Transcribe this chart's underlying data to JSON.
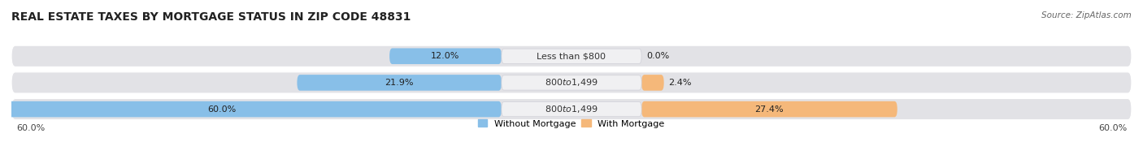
{
  "title": "REAL ESTATE TAXES BY MORTGAGE STATUS IN ZIP CODE 48831",
  "source": "Source: ZipAtlas.com",
  "rows": [
    {
      "label": "Less than $800",
      "without_pct": 12.0,
      "with_pct": 0.0
    },
    {
      "label": "$800 to $1,499",
      "without_pct": 21.9,
      "with_pct": 2.4
    },
    {
      "label": "$800 to $1,499",
      "without_pct": 60.0,
      "with_pct": 27.4
    }
  ],
  "x_max": 60.0,
  "blue_color": "#88bfe8",
  "orange_color": "#f5b87a",
  "row_bg_color": "#e2e2e6",
  "label_box_color": "#f0f0f2",
  "label_box_edge": "#d0d0d8",
  "legend_blue": "Without Mortgage",
  "legend_orange": "With Mortgage",
  "axis_label_left": "60.0%",
  "axis_label_right": "60.0%",
  "title_fontsize": 10,
  "pct_fontsize": 8,
  "label_fontsize": 8,
  "legend_fontsize": 8
}
